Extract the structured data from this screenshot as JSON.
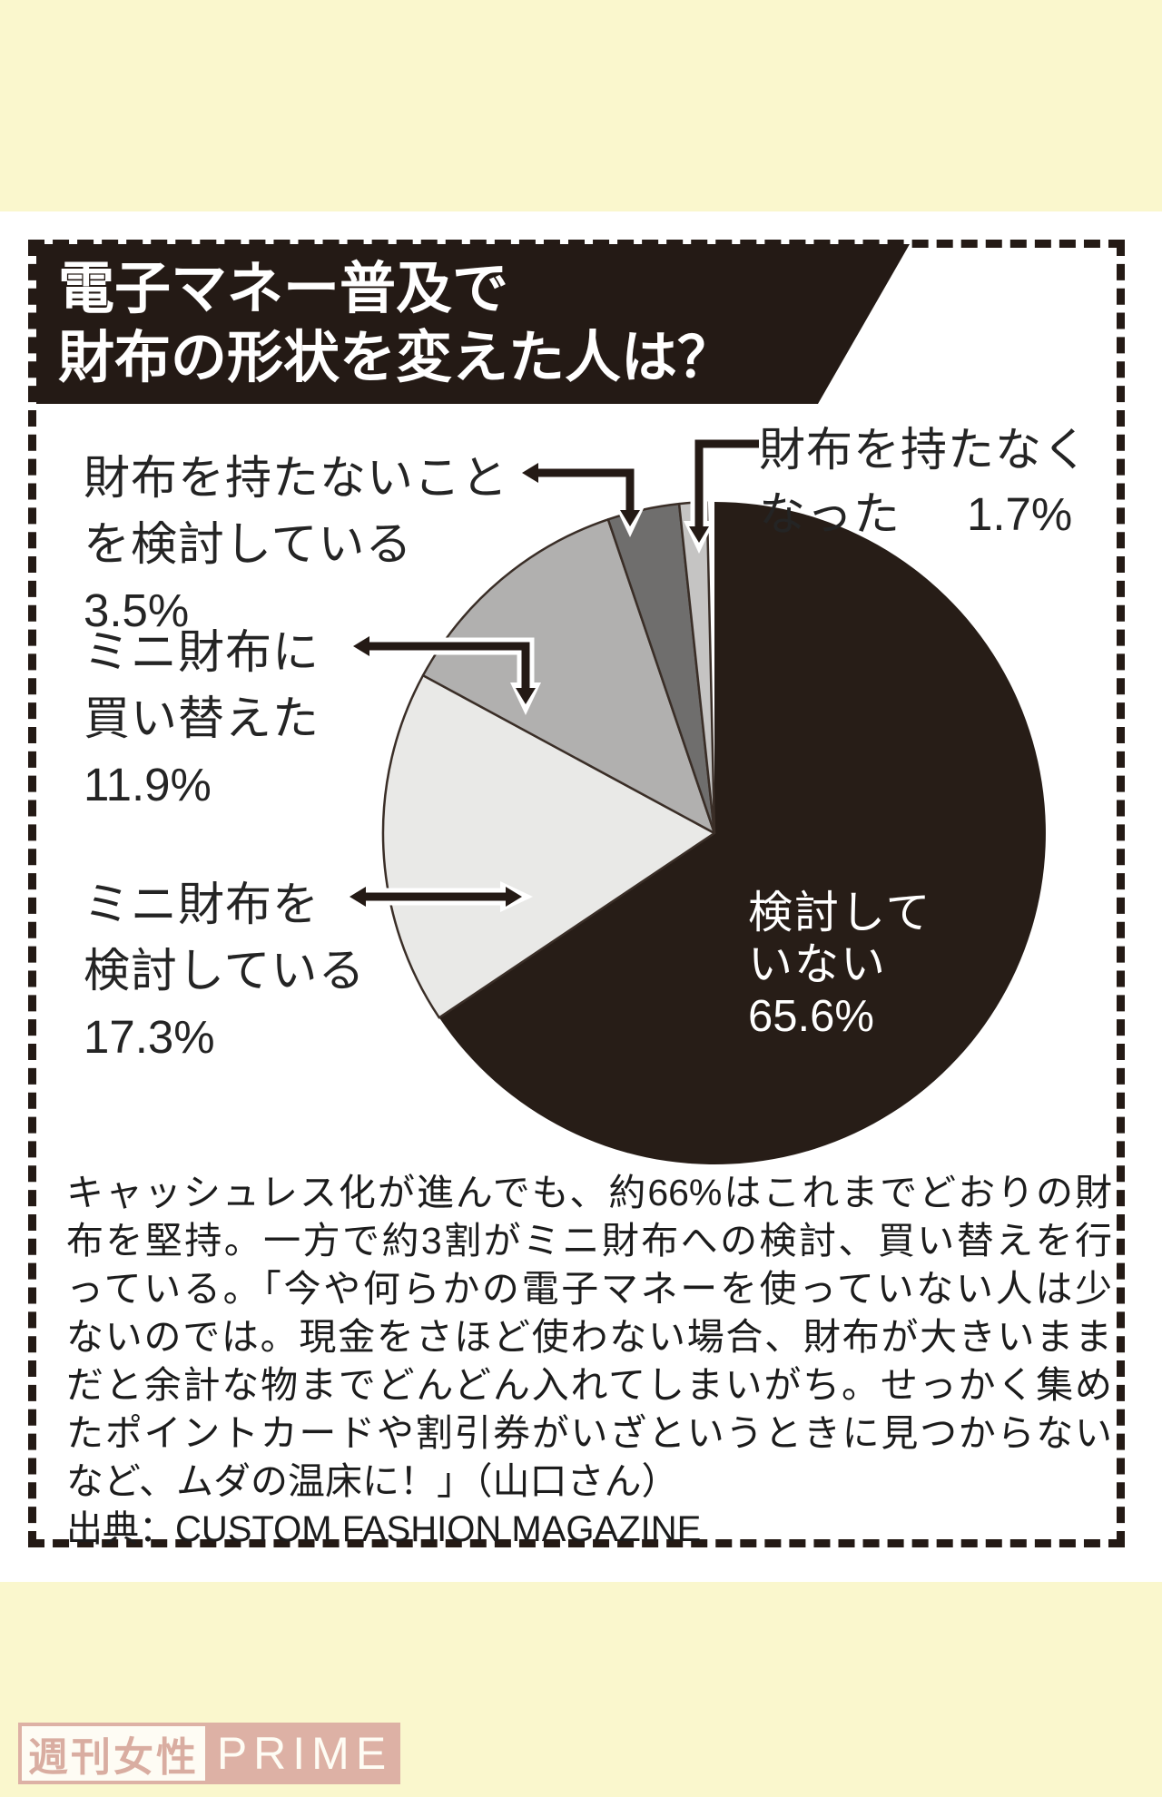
{
  "page": {
    "background_color": "#faf7cd",
    "panel_background": "#ffffff",
    "ink_color": "#241a15"
  },
  "header": {
    "title_lines": [
      "電子マネー普及で",
      "財布の形状を変えた人は？"
    ]
  },
  "chart_data": {
    "type": "pie",
    "title": "電子マネー普及で財布の形状を変えた人は？",
    "direction": "clockwise",
    "start_angle_deg": 0,
    "outline_color": "#3a2e27",
    "slices": [
      {
        "label": "検討していない",
        "value": 65.6,
        "display": "65.6%",
        "color": "#271d17"
      },
      {
        "label": "ミニ財布を検討している",
        "value": 17.3,
        "display": "17.3%",
        "color": "#e9e9e7"
      },
      {
        "label": "ミニ財布に買い替えた",
        "value": 11.9,
        "display": "11.9%",
        "color": "#b1b0af"
      },
      {
        "label": "財布を持たないことを検討している",
        "value": 3.5,
        "display": "3.5%",
        "color": "#6f6e6d"
      },
      {
        "label": "財布を持たなくなった",
        "value": 1.7,
        "display": "1.7%",
        "color": "#c5c4c3"
      }
    ]
  },
  "labels": {
    "no_wallet_considering": {
      "lines": [
        "財布を持たないこと",
        "を検討している",
        "3.5%"
      ]
    },
    "mini_replaced": {
      "lines": [
        "ミニ財布に",
        "買い替えた",
        "11.9%"
      ]
    },
    "mini_considering": {
      "lines": [
        "ミニ財布を",
        "検討している",
        "17.3%"
      ]
    },
    "no_wallet_now": {
      "line1": "財布を持たなく",
      "line2_text": "なった",
      "line2_value": "1.7%"
    },
    "not_considering": {
      "lines": [
        "検討して",
        "いない",
        "65.6%"
      ]
    }
  },
  "body": {
    "lines": [
      "キャッシュレス化が進んでも、約66%はこれまでどおりの財",
      "布を堅持。一方で約3割がミニ財布への検討、買い替えを行",
      "っている。「今や何らかの電子マネーを使っていない人は少",
      "ないのでは。現金をさほど使わない場合、財布が大きいまま",
      "だと余計な物までどんどん入れてしまいがち。せっかく集め",
      "たポイントカードや割引券がいざというときに見つからない",
      "など、ムダの温床に！」（山口さん）"
    ],
    "source": "出典：CUSTOM FASHION MAGAZINE"
  },
  "logo": {
    "left_text": "週刊女性",
    "right_text": "PRIME",
    "pink": "#dcafa4"
  }
}
